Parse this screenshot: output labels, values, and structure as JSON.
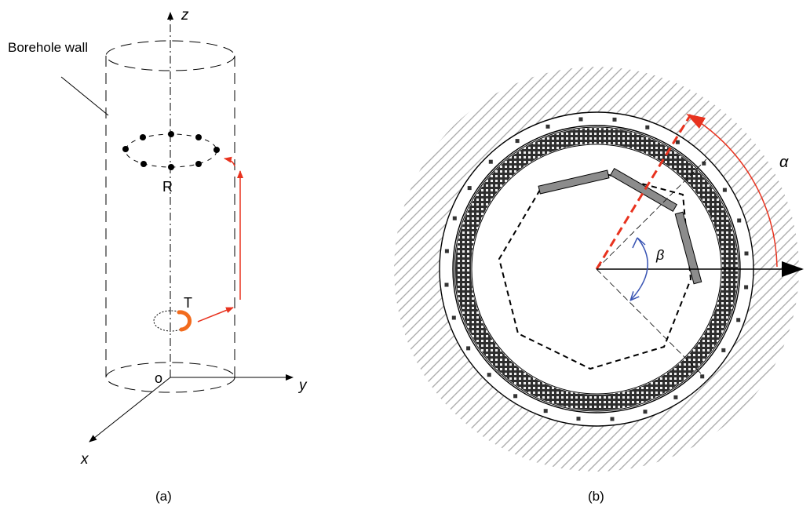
{
  "panel_a": {
    "caption": "(a)",
    "wall_label": "Borehole wall",
    "z_label": "z",
    "y_label": "y",
    "x_label": "x",
    "origin_label": "o",
    "receiver_label": "R",
    "transmitter_label": "T"
  },
  "panel_b": {
    "caption": "(b)",
    "alpha_label": "α",
    "beta_label": "β"
  },
  "colors": {
    "line": "#000000",
    "wave_path": "#e8321e",
    "source": "#f26b1d",
    "angle_beta": "#3a55b4",
    "receiver_bar": "#808080",
    "hatch": "#b0b0b0",
    "ring_band": "#3a3a3a"
  }
}
